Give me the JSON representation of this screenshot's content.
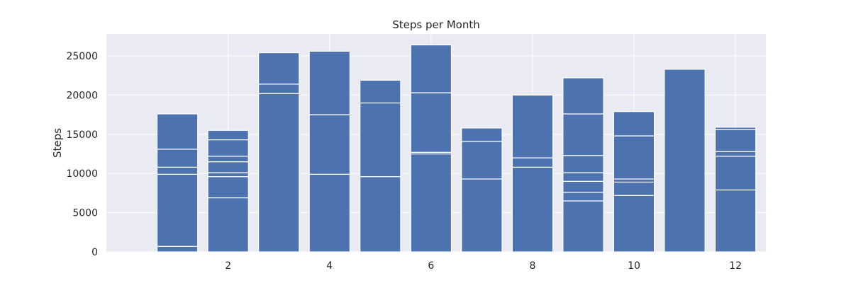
{
  "chart_data": {
    "type": "bar",
    "stacked": true,
    "title": "Steps per Month",
    "xlabel": "",
    "ylabel": "Steps",
    "xlim": [
      -0.4,
      12.6
    ],
    "ylim": [
      0,
      27800
    ],
    "xticks": [
      2,
      4,
      6,
      8,
      10,
      12
    ],
    "yticks": [
      0,
      5000,
      10000,
      15000,
      20000,
      25000
    ],
    "grid": true,
    "colors": {
      "bar": "#4c72b0",
      "edge": "#ffffff",
      "plot_bg": "#eaeaf2",
      "grid": "#ffffff"
    },
    "categories": [
      1,
      2,
      3,
      4,
      5,
      6,
      7,
      8,
      9,
      10,
      11,
      12
    ],
    "segments": [
      [
        700,
        9200,
        900,
        2300,
        4500
      ],
      [
        6900,
        2700,
        500,
        1400,
        700,
        2100,
        1200
      ],
      [
        20200,
        1200,
        4000
      ],
      [
        9900,
        7600,
        8100
      ],
      [
        9600,
        9400,
        2900
      ],
      [
        12500,
        200,
        7600,
        6100
      ],
      [
        9300,
        4800,
        1700
      ],
      [
        10800,
        1200,
        8000
      ],
      [
        6500,
        1100,
        1400,
        1100,
        2200,
        5300,
        4600
      ],
      [
        7200,
        1700,
        400,
        5500,
        3100
      ],
      [
        23300
      ],
      [
        7900,
        4300,
        600,
        2800,
        300
      ]
    ],
    "totals": [
      17600,
      15500,
      25400,
      25600,
      21900,
      26400,
      15800,
      20000,
      22200,
      17900,
      23300,
      15900
    ]
  }
}
